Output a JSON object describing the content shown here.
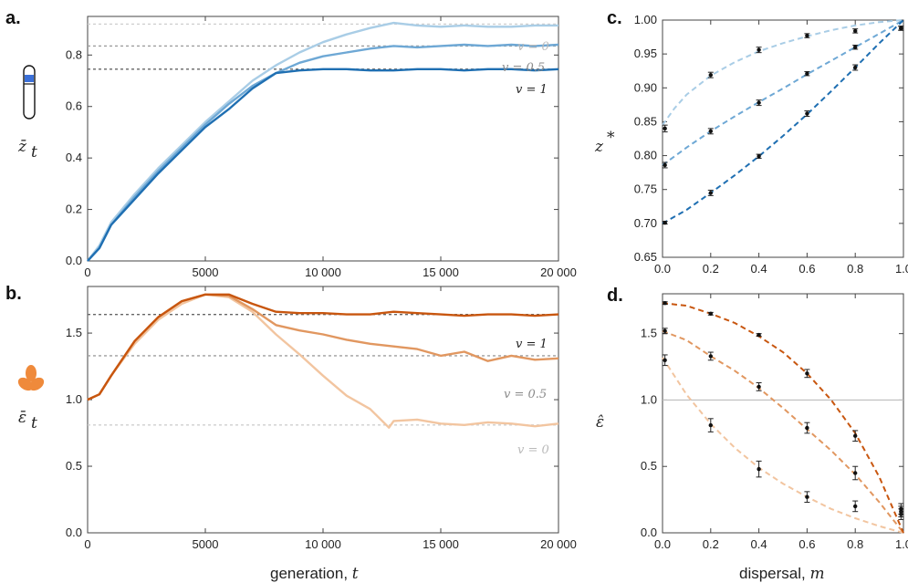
{
  "panel_labels": {
    "a": "a.",
    "b": "b.",
    "c": "c.",
    "d": "d."
  },
  "ylabels": {
    "a_main": "z̄",
    "a_sub": "t",
    "b_main": "ε̄",
    "b_sub": "t",
    "c": "z",
    "c_sup": "*",
    "d": "ε̂"
  },
  "xlabels": {
    "bottom_left_prefix": "generation, ",
    "bottom_left_var": "t",
    "bottom_right_prefix": "dispersal, ",
    "bottom_right_var": "m"
  },
  "annotations": {
    "a": [
      {
        "text": "v = 0",
        "color": "#b9b9b9"
      },
      {
        "text": "v = 0.5",
        "color": "#8a8a8a"
      },
      {
        "text": "v = 1",
        "color": "#222222"
      }
    ],
    "b": [
      {
        "text": "v = 1",
        "color": "#222222"
      },
      {
        "text": "v = 0.5",
        "color": "#8a8a8a"
      },
      {
        "text": "v = 0",
        "color": "#b9b9b9"
      }
    ]
  },
  "colors": {
    "blue": [
      "#a9cde6",
      "#6ea8d5",
      "#1f6fb2"
    ],
    "orange": [
      "#f2c5a0",
      "#e19760",
      "#c8560f"
    ],
    "ref_lines": [
      "#cfcfcf",
      "#9e9e9e",
      "#666666"
    ],
    "icon_blue": "#3a6fd8",
    "icon_orange": "#ef8a3b"
  },
  "icons": {
    "a": "chromosome-icon",
    "b": "trefoil-icon"
  },
  "chart_data": [
    {
      "id": "a",
      "type": "line",
      "xlim": [
        0,
        20000
      ],
      "ylim": [
        0,
        0.95
      ],
      "xticks": [
        0,
        5000,
        10000,
        15000,
        20000
      ],
      "xtick_labels": [
        "0",
        "5000",
        "10 000",
        "15 000",
        "20 000"
      ],
      "yticks": [
        0,
        0.2,
        0.4,
        0.6,
        0.8
      ],
      "ytick_labels": [
        "0.0",
        "0.2",
        "0.4",
        "0.6",
        "0.8"
      ],
      "reference_lines": [
        0.92,
        0.835,
        0.745
      ],
      "series": [
        {
          "x": [
            0,
            500,
            1000,
            2000,
            3000,
            4000,
            5000,
            6000,
            7000,
            8000,
            9000,
            10000,
            11000,
            12000,
            13000,
            14000,
            15000,
            16000,
            17000,
            18000,
            19000,
            20000
          ],
          "y": [
            0,
            0.06,
            0.15,
            0.26,
            0.36,
            0.45,
            0.54,
            0.62,
            0.7,
            0.76,
            0.81,
            0.85,
            0.88,
            0.905,
            0.925,
            0.915,
            0.91,
            0.915,
            0.91,
            0.91,
            0.915,
            0.915
          ]
        },
        {
          "x": [
            0,
            500,
            1000,
            2000,
            3000,
            4000,
            5000,
            6000,
            7000,
            8000,
            9000,
            10000,
            11000,
            12000,
            13000,
            14000,
            15000,
            16000,
            17000,
            18000,
            19000,
            20000
          ],
          "y": [
            0,
            0.05,
            0.14,
            0.25,
            0.35,
            0.44,
            0.53,
            0.61,
            0.68,
            0.73,
            0.77,
            0.795,
            0.81,
            0.825,
            0.835,
            0.83,
            0.835,
            0.84,
            0.835,
            0.84,
            0.835,
            0.84
          ]
        },
        {
          "x": [
            0,
            500,
            1000,
            2000,
            3000,
            4000,
            5000,
            6000,
            7000,
            8000,
            9000,
            10000,
            11000,
            12000,
            13000,
            14000,
            15000,
            16000,
            17000,
            18000,
            19000,
            20000
          ],
          "y": [
            0,
            0.05,
            0.14,
            0.24,
            0.34,
            0.43,
            0.52,
            0.59,
            0.67,
            0.73,
            0.74,
            0.745,
            0.745,
            0.74,
            0.74,
            0.745,
            0.745,
            0.74,
            0.745,
            0.745,
            0.74,
            0.745
          ]
        }
      ]
    },
    {
      "id": "b",
      "type": "line",
      "xlim": [
        0,
        20000
      ],
      "ylim": [
        0,
        1.85
      ],
      "xticks": [
        0,
        5000,
        10000,
        15000,
        20000
      ],
      "xtick_labels": [
        "0",
        "5000",
        "10 000",
        "15 000",
        "20 000"
      ],
      "yticks": [
        0,
        0.5,
        1.0,
        1.5
      ],
      "ytick_labels": [
        "0.0",
        "0.5",
        "1.0",
        "1.5"
      ],
      "reference_lines": [
        0.81,
        1.33,
        1.64
      ],
      "series": [
        {
          "x": [
            0,
            500,
            1000,
            2000,
            3000,
            4000,
            5000,
            6000,
            7000,
            8000,
            9000,
            10000,
            11000,
            12000,
            12800,
            13000,
            14000,
            15000,
            16000,
            17000,
            18000,
            19000,
            20000
          ],
          "y": [
            1.0,
            1.04,
            1.18,
            1.42,
            1.6,
            1.72,
            1.79,
            1.77,
            1.66,
            1.49,
            1.34,
            1.18,
            1.03,
            0.93,
            0.79,
            0.84,
            0.85,
            0.82,
            0.81,
            0.83,
            0.82,
            0.8,
            0.82
          ]
        },
        {
          "x": [
            0,
            500,
            1000,
            2000,
            3000,
            4000,
            5000,
            6000,
            7000,
            8000,
            9000,
            10000,
            11000,
            12000,
            13000,
            14000,
            15000,
            16000,
            17000,
            18000,
            19000,
            20000
          ],
          "y": [
            1.0,
            1.04,
            1.18,
            1.44,
            1.62,
            1.74,
            1.79,
            1.78,
            1.68,
            1.56,
            1.52,
            1.49,
            1.45,
            1.42,
            1.4,
            1.38,
            1.33,
            1.36,
            1.29,
            1.33,
            1.3,
            1.31
          ]
        },
        {
          "x": [
            0,
            500,
            1000,
            2000,
            3000,
            4000,
            5000,
            6000,
            7000,
            8000,
            9000,
            10000,
            11000,
            12000,
            13000,
            14000,
            15000,
            16000,
            17000,
            18000,
            19000,
            20000
          ],
          "y": [
            1.0,
            1.04,
            1.18,
            1.44,
            1.62,
            1.74,
            1.79,
            1.79,
            1.72,
            1.66,
            1.65,
            1.65,
            1.64,
            1.64,
            1.66,
            1.65,
            1.64,
            1.63,
            1.64,
            1.64,
            1.63,
            1.64
          ]
        }
      ]
    },
    {
      "id": "c",
      "type": "scatter",
      "xlim": [
        0,
        1
      ],
      "ylim": [
        0.65,
        1.0
      ],
      "xticks": [
        0,
        0.2,
        0.4,
        0.6,
        0.8,
        1.0
      ],
      "xtick_labels": [
        "0.0",
        "0.2",
        "0.4",
        "0.6",
        "0.8",
        "1.0"
      ],
      "yticks": [
        0.65,
        0.7,
        0.75,
        0.8,
        0.85,
        0.9,
        0.95,
        1.0
      ],
      "ytick_labels": [
        "0.65",
        "0.70",
        "0.75",
        "0.80",
        "0.85",
        "0.90",
        "0.95",
        "1.00"
      ],
      "series": [
        {
          "x": [
            0.01,
            0.2,
            0.4,
            0.6,
            0.8,
            0.99
          ],
          "y": [
            0.84,
            0.919,
            0.956,
            0.977,
            0.984,
            0.988
          ],
          "err": [
            0.005,
            0.004,
            0.004,
            0.003,
            0.003,
            0.003
          ],
          "curve_x": [
            0,
            0.05,
            0.1,
            0.2,
            0.3,
            0.4,
            0.5,
            0.6,
            0.7,
            0.8,
            0.9,
            1.0
          ],
          "curve_y": [
            0.845,
            0.87,
            0.89,
            0.918,
            0.938,
            0.954,
            0.966,
            0.976,
            0.985,
            0.992,
            0.997,
            1.0
          ]
        },
        {
          "x": [
            0.01,
            0.2,
            0.4,
            0.6,
            0.8,
            0.99
          ],
          "y": [
            0.786,
            0.836,
            0.878,
            0.921,
            0.96,
            0.988
          ],
          "err": [
            0.004,
            0.004,
            0.004,
            0.003,
            0.003,
            0.003
          ],
          "curve_x": [
            0,
            0.1,
            0.2,
            0.3,
            0.4,
            0.5,
            0.6,
            0.7,
            0.8,
            0.9,
            1.0
          ],
          "curve_y": [
            0.786,
            0.812,
            0.836,
            0.858,
            0.879,
            0.899,
            0.92,
            0.94,
            0.96,
            0.98,
            1.0
          ]
        },
        {
          "x": [
            0.01,
            0.2,
            0.4,
            0.6,
            0.8,
            0.99
          ],
          "y": [
            0.701,
            0.745,
            0.799,
            0.862,
            0.93,
            0.988
          ],
          "err": [
            0.002,
            0.004,
            0.003,
            0.004,
            0.004,
            0.003
          ],
          "curve_x": [
            0,
            0.1,
            0.2,
            0.3,
            0.4,
            0.5,
            0.6,
            0.7,
            0.8,
            0.9,
            1.0
          ],
          "curve_y": [
            0.7,
            0.72,
            0.745,
            0.771,
            0.799,
            0.829,
            0.861,
            0.895,
            0.93,
            0.966,
            1.0
          ]
        }
      ]
    },
    {
      "id": "d",
      "type": "scatter",
      "xlim": [
        0,
        1
      ],
      "ylim": [
        0,
        1.8
      ],
      "xticks": [
        0,
        0.2,
        0.4,
        0.6,
        0.8,
        1.0
      ],
      "xtick_labels": [
        "0.0",
        "0.2",
        "0.4",
        "0.6",
        "0.8",
        "1.0"
      ],
      "yticks": [
        0,
        0.5,
        1.0,
        1.5
      ],
      "ytick_labels": [
        "0.0",
        "0.5",
        "1.0",
        "1.5"
      ],
      "reference_lines": [
        1.0
      ],
      "series": [
        {
          "x": [
            0.01,
            0.2,
            0.4,
            0.6,
            0.8,
            0.99
          ],
          "y": [
            1.3,
            0.81,
            0.48,
            0.27,
            0.2,
            0.16
          ],
          "err": [
            0.04,
            0.05,
            0.06,
            0.04,
            0.04,
            0.04
          ],
          "curve_x": [
            0,
            0.1,
            0.2,
            0.3,
            0.4,
            0.5,
            0.6,
            0.7,
            0.8,
            0.9,
            1.0
          ],
          "curve_y": [
            1.32,
            1.04,
            0.82,
            0.64,
            0.49,
            0.37,
            0.27,
            0.18,
            0.11,
            0.05,
            0.0
          ]
        },
        {
          "x": [
            0.01,
            0.2,
            0.4,
            0.6,
            0.8,
            0.99
          ],
          "y": [
            1.52,
            1.33,
            1.1,
            0.79,
            0.45,
            0.14
          ],
          "err": [
            0.02,
            0.03,
            0.03,
            0.04,
            0.05,
            0.04
          ],
          "curve_x": [
            0,
            0.1,
            0.2,
            0.3,
            0.4,
            0.5,
            0.6,
            0.7,
            0.8,
            0.9,
            1.0
          ],
          "curve_y": [
            1.52,
            1.45,
            1.33,
            1.22,
            1.09,
            0.94,
            0.78,
            0.62,
            0.44,
            0.23,
            0.0
          ]
        },
        {
          "x": [
            0.01,
            0.2,
            0.4,
            0.6,
            0.8,
            0.99
          ],
          "y": [
            1.73,
            1.65,
            1.49,
            1.2,
            0.73,
            0.18
          ],
          "err": [
            0.01,
            0.01,
            0.01,
            0.03,
            0.04,
            0.04
          ],
          "curve_x": [
            0,
            0.1,
            0.2,
            0.3,
            0.4,
            0.5,
            0.6,
            0.7,
            0.8,
            0.9,
            1.0
          ],
          "curve_y": [
            1.73,
            1.71,
            1.65,
            1.58,
            1.48,
            1.36,
            1.2,
            1.0,
            0.75,
            0.42,
            0.0
          ]
        }
      ]
    }
  ]
}
